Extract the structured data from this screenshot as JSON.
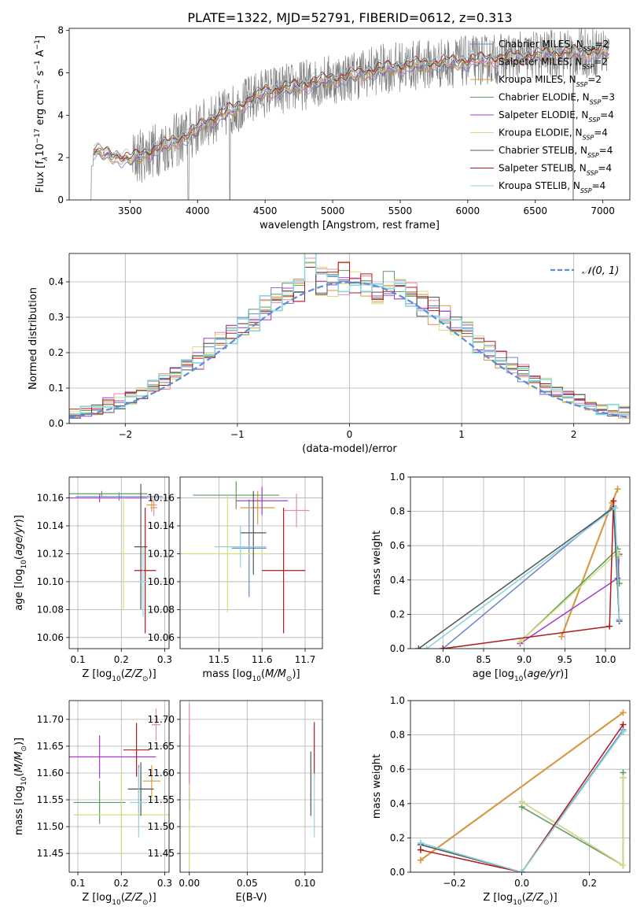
{
  "title": "PLATE=1322, MJD=52791, FIBERID=0612, z=0.313",
  "models": [
    {
      "label": "Chabrier MILES, N",
      "sub": "SSP",
      "tail": "=2",
      "color": "#6b88cc"
    },
    {
      "label": "Salpeter MILES, N",
      "sub": "SSP",
      "tail": "=2",
      "color": "#e98aa8"
    },
    {
      "label": "Kroupa MILES, N",
      "sub": "SSP",
      "tail": "=2",
      "color": "#d69a3c"
    },
    {
      "label": "Chabrier ELODIE, N",
      "sub": "SSP",
      "tail": "=3",
      "color": "#5f9a5f"
    },
    {
      "label": "Salpeter ELODIE, N",
      "sub": "SSP",
      "tail": "=4",
      "color": "#a43cc9"
    },
    {
      "label": "Kroupa ELODIE, N",
      "sub": "SSP",
      "tail": "=4",
      "color": "#cfe07a"
    },
    {
      "label": "Chabrier STELIB, N",
      "sub": "SSP",
      "tail": "=4",
      "color": "#555555"
    },
    {
      "label": "Salpeter STELIB, N",
      "sub": "SSP",
      "tail": "=4",
      "color": "#b01a1a"
    },
    {
      "label": "Kroupa STELIB, N",
      "sub": "SSP",
      "tail": "=4",
      "color": "#8ad4de"
    }
  ],
  "chart_data": [
    {
      "id": "spectrum",
      "type": "line",
      "xlabel": "wavelength [Angstrom, rest frame]",
      "ylabel": "Flux [f_λ 10^-17 erg cm^-2 s^-1 A^-1]",
      "xlim": [
        3050,
        7200
      ],
      "ylim": [
        0,
        8.1
      ],
      "xticks": [
        3500,
        4000,
        4500,
        5000,
        5500,
        6000,
        6500,
        7000
      ],
      "yticks": [
        0,
        2,
        4,
        6,
        8
      ],
      "data_color": "#808080",
      "data_range": [
        3200,
        7050
      ],
      "model_envelope": [
        [
          3230,
          2.3
        ],
        [
          3500,
          1.9
        ],
        [
          3700,
          2.4
        ],
        [
          3950,
          3.1
        ],
        [
          4050,
          3.6
        ],
        [
          4300,
          4.4
        ],
        [
          4500,
          5.1
        ],
        [
          4700,
          5.3
        ],
        [
          4900,
          5.6
        ],
        [
          5100,
          5.8
        ],
        [
          5300,
          6.1
        ],
        [
          5500,
          6.3
        ],
        [
          5700,
          6.4
        ],
        [
          5900,
          6.5
        ],
        [
          6100,
          6.6
        ],
        [
          6300,
          6.7
        ],
        [
          6500,
          6.8
        ],
        [
          6700,
          6.9
        ],
        [
          7000,
          7.0
        ]
      ],
      "grid": false,
      "legend": "right"
    },
    {
      "id": "residuals",
      "type": "histogram",
      "xlabel": "(data-model)/error",
      "ylabel": "Normed distribution",
      "xlim": [
        -2.5,
        2.5
      ],
      "ylim": [
        0,
        0.48
      ],
      "xticks": [
        -2,
        -1,
        0,
        1,
        2
      ],
      "yticks": [
        0,
        0.1,
        0.2,
        0.3,
        0.4
      ],
      "bin_width": 0.1,
      "reference_label": "𝒩(0, 1)",
      "reference_color": "#5b8ed6",
      "grid": true,
      "legend": "top-right"
    },
    {
      "id": "age_vs_Z",
      "type": "errorbar",
      "xlabel": "Z [log10(Z/Z⊙)]",
      "ylabel": "age [log10(age/yr)]",
      "xlim": [
        0.08,
        0.31
      ],
      "ylim": [
        10.052,
        10.175
      ],
      "xticks": [
        0.1,
        0.2,
        0.3
      ],
      "yticks": [
        10.06,
        10.08,
        10.1,
        10.12,
        10.14,
        10.16
      ],
      "points": [
        {
          "x": 0.195,
          "xerr": 0.1,
          "y": 10.161,
          "yerr": 0.003,
          "c": 0
        },
        {
          "x": 0.275,
          "xerr": 0.008,
          "y": 10.153,
          "yerr": 0.006,
          "c": 1
        },
        {
          "x": 0.27,
          "xerr": 0.012,
          "y": 10.155,
          "yerr": 0.005,
          "c": 2
        },
        {
          "x": 0.155,
          "xerr": 0.105,
          "y": 10.163,
          "yerr": 0.002,
          "c": 3
        },
        {
          "x": 0.15,
          "xerr": 0.11,
          "y": 10.16,
          "yerr": 0.003,
          "c": 4
        },
        {
          "x": 0.205,
          "xerr": 0.005,
          "y": 10.12,
          "yerr": 0.04,
          "c": 5
        },
        {
          "x": 0.245,
          "xerr": 0.015,
          "y": 10.125,
          "yerr": 0.045,
          "c": 6
        },
        {
          "x": 0.255,
          "xerr": 0.025,
          "y": 10.108,
          "yerr": 0.045,
          "c": 7
        },
        {
          "x": 0.25,
          "xerr": 0.015,
          "y": 10.1,
          "yerr": 0.025,
          "c": 8
        }
      ]
    },
    {
      "id": "age_vs_mass",
      "type": "errorbar",
      "xlabel": "mass [log10(M/M⊙)]",
      "ylabel": "",
      "xlim": [
        11.41,
        11.74
      ],
      "ylim": [
        10.052,
        10.175
      ],
      "xticks": [
        11.5,
        11.6,
        11.7
      ],
      "yticks": [
        10.06,
        10.08,
        10.1,
        10.12,
        10.14,
        10.16
      ],
      "points": [
        {
          "x": 11.57,
          "xerr": 0.04,
          "y": 10.124,
          "yerr": 0.035,
          "c": 0
        },
        {
          "x": 11.68,
          "xerr": 0.03,
          "y": 10.151,
          "yerr": 0.012,
          "c": 1
        },
        {
          "x": 11.59,
          "xerr": 0.04,
          "y": 10.153,
          "yerr": 0.012,
          "c": 2
        },
        {
          "x": 11.54,
          "xerr": 0.1,
          "y": 10.162,
          "yerr": 0.01,
          "c": 3
        },
        {
          "x": 11.6,
          "xerr": 0.06,
          "y": 10.158,
          "yerr": 0.01,
          "c": 4
        },
        {
          "x": 11.52,
          "xerr": 0.1,
          "y": 10.12,
          "yerr": 0.042,
          "c": 5
        },
        {
          "x": 11.58,
          "xerr": 0.03,
          "y": 10.135,
          "yerr": 0.03,
          "c": 6
        },
        {
          "x": 11.65,
          "xerr": 0.05,
          "y": 10.108,
          "yerr": 0.045,
          "c": 7
        },
        {
          "x": 11.55,
          "xerr": 0.06,
          "y": 10.125,
          "yerr": 0.015,
          "c": 8
        }
      ]
    },
    {
      "id": "massweight_vs_age",
      "type": "line",
      "xlabel": "age  [log10(age/yr)]",
      "ylabel": "mass weight",
      "xlim": [
        7.6,
        10.3
      ],
      "ylim": [
        0,
        1.0
      ],
      "xticks": [
        8.0,
        8.5,
        9.0,
        9.5,
        10.0
      ],
      "yticks": [
        0.0,
        0.2,
        0.4,
        0.6,
        0.8,
        1.0
      ],
      "series": [
        {
          "c": 0,
          "points": [
            [
              8.0,
              0.0
            ],
            [
              10.1,
              0.83
            ],
            [
              10.17,
              0.17
            ]
          ]
        },
        {
          "c": 1,
          "points": [
            [
              9.46,
              0.07
            ],
            [
              10.08,
              0.85
            ],
            [
              10.15,
              0.93
            ]
          ]
        },
        {
          "c": 2,
          "points": [
            [
              9.46,
              0.07
            ],
            [
              10.08,
              0.85
            ],
            [
              10.15,
              0.93
            ]
          ]
        },
        {
          "c": 3,
          "points": [
            [
              8.95,
              0.04
            ],
            [
              10.15,
              0.58
            ],
            [
              10.17,
              0.38
            ]
          ]
        },
        {
          "c": 4,
          "points": [
            [
              8.95,
              0.03
            ],
            [
              10.15,
              0.41
            ],
            [
              10.17,
              0.55
            ]
          ]
        },
        {
          "c": 5,
          "points": [
            [
              8.95,
              0.04
            ],
            [
              10.15,
              0.56
            ],
            [
              10.17,
              0.54
            ]
          ]
        },
        {
          "c": 6,
          "points": [
            [
              7.7,
              0.0
            ],
            [
              10.1,
              0.82
            ],
            [
              10.17,
              0.16
            ]
          ]
        },
        {
          "c": 7,
          "points": [
            [
              8.0,
              0.0
            ],
            [
              10.05,
              0.13
            ],
            [
              10.1,
              0.86
            ]
          ]
        },
        {
          "c": 8,
          "points": [
            [
              7.8,
              0.0
            ],
            [
              10.12,
              0.82
            ],
            [
              10.17,
              0.17
            ]
          ]
        }
      ]
    },
    {
      "id": "mass_vs_Z",
      "type": "errorbar",
      "xlabel": "Z [log10(Z/Z⊙)]",
      "ylabel": "mass [log10(M/M⊙)]",
      "xlim": [
        0.08,
        0.31
      ],
      "ylim": [
        11.415,
        11.735
      ],
      "xticks": [
        0.1,
        0.2,
        0.3
      ],
      "yticks": [
        11.45,
        11.5,
        11.55,
        11.6,
        11.65,
        11.7
      ],
      "points": [
        {
          "x": 0.24,
          "xerr": 0.01,
          "y": 11.57,
          "yerr": 0.045,
          "c": 0
        },
        {
          "x": 0.28,
          "xerr": 0.01,
          "y": 11.69,
          "yerr": 0.03,
          "c": 1
        },
        {
          "x": 0.27,
          "xerr": 0.02,
          "y": 11.585,
          "yerr": 0.03,
          "c": 2
        },
        {
          "x": 0.15,
          "xerr": 0.06,
          "y": 11.545,
          "yerr": 0.04,
          "c": 3
        },
        {
          "x": 0.15,
          "xerr": 0.13,
          "y": 11.63,
          "yerr": 0.04,
          "c": 4
        },
        {
          "x": 0.2,
          "xerr": 0.11,
          "y": 11.522,
          "yerr": 0.08,
          "c": 5
        },
        {
          "x": 0.245,
          "xerr": 0.03,
          "y": 11.57,
          "yerr": 0.05,
          "c": 6
        },
        {
          "x": 0.235,
          "xerr": 0.03,
          "y": 11.643,
          "yerr": 0.05,
          "c": 7
        },
        {
          "x": 0.24,
          "xerr": 0.02,
          "y": 11.545,
          "yerr": 0.065,
          "c": 8
        }
      ]
    },
    {
      "id": "mass_vs_ebv",
      "type": "errorbar",
      "xlabel": "E(B-V)",
      "ylabel": "",
      "xlim": [
        -0.008,
        0.115
      ],
      "ylim": [
        11.415,
        11.735
      ],
      "xticks": [
        0.0,
        0.05,
        0.1
      ],
      "yticks": [
        11.45,
        11.5,
        11.55,
        11.6,
        11.65,
        11.7
      ],
      "points": [
        {
          "x": 0.0,
          "xerr": 0,
          "y": 11.6,
          "yerr": 0.07,
          "c": 4
        },
        {
          "x": 0.0,
          "xerr": 0,
          "y": 11.65,
          "yerr": 0.08,
          "c": 1
        },
        {
          "x": 0.0,
          "xerr": 0,
          "y": 11.5,
          "yerr": 0.08,
          "c": 5
        },
        {
          "x": 0.105,
          "xerr": 0,
          "y": 11.58,
          "yerr": 0.06,
          "c": 6
        },
        {
          "x": 0.108,
          "xerr": 0,
          "y": 11.645,
          "yerr": 0.05,
          "c": 7
        },
        {
          "x": 0.108,
          "xerr": 0,
          "y": 11.54,
          "yerr": 0.06,
          "c": 8
        }
      ]
    },
    {
      "id": "massweight_vs_Z",
      "type": "line",
      "xlabel": "Z [log10(Z/Z⊙)]",
      "ylabel": "mass weight",
      "xlim": [
        -0.33,
        0.32
      ],
      "ylim": [
        0,
        1.0
      ],
      "xticks": [
        -0.2,
        0.0,
        0.2
      ],
      "yticks": [
        0.0,
        0.2,
        0.4,
        0.6,
        0.8,
        1.0
      ],
      "series": [
        {
          "c": 0,
          "points": [
            [
              -0.3,
              0.17
            ],
            [
              0.0,
              0.0
            ],
            [
              0.3,
              0.83
            ]
          ]
        },
        {
          "c": 1,
          "points": [
            [
              -0.3,
              0.07
            ],
            [
              0.3,
              0.93
            ]
          ]
        },
        {
          "c": 2,
          "points": [
            [
              -0.3,
              0.07
            ],
            [
              0.3,
              0.93
            ]
          ]
        },
        {
          "c": 3,
          "points": [
            [
              0.0,
              0.38
            ],
            [
              0.3,
              0.04
            ],
            [
              0.3,
              0.58
            ]
          ]
        },
        {
          "c": 4,
          "points": [
            [
              0.0,
              0.41
            ],
            [
              0.3,
              0.04
            ],
            [
              0.3,
              0.55
            ]
          ]
        },
        {
          "c": 5,
          "points": [
            [
              0.0,
              0.41
            ],
            [
              0.3,
              0.04
            ],
            [
              0.3,
              0.55
            ]
          ]
        },
        {
          "c": 6,
          "points": [
            [
              -0.3,
              0.16
            ],
            [
              0.0,
              0.0
            ],
            [
              0.3,
              0.82
            ]
          ]
        },
        {
          "c": 7,
          "points": [
            [
              -0.3,
              0.13
            ],
            [
              0.0,
              0.0
            ],
            [
              0.3,
              0.86
            ]
          ]
        },
        {
          "c": 8,
          "points": [
            [
              -0.3,
              0.17
            ],
            [
              0.0,
              0.0
            ],
            [
              0.3,
              0.82
            ]
          ]
        }
      ]
    }
  ]
}
